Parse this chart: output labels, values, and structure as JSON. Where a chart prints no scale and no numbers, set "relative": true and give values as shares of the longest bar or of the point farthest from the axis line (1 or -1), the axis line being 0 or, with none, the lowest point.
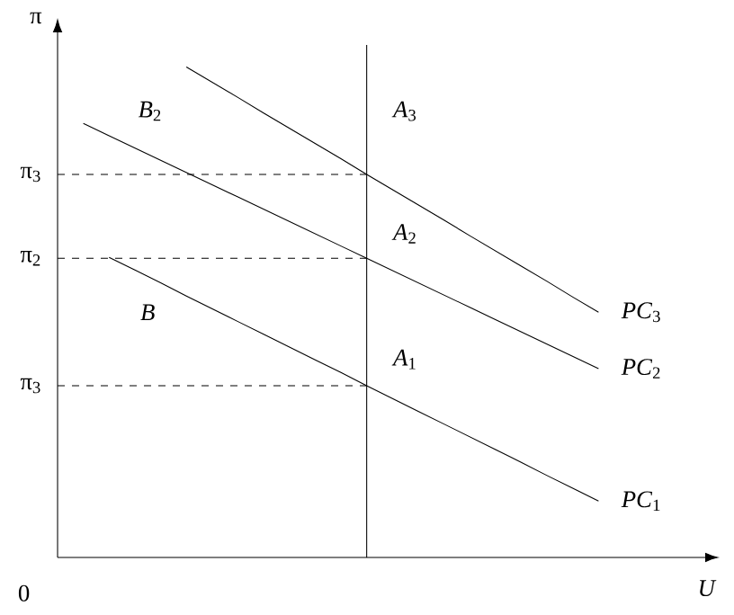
{
  "chart_data": {
    "type": "line",
    "relative": true,
    "xlabel": "U",
    "ylabel": "π",
    "marker": "none",
    "line_style": "solid",
    "categories": [
      null,
      null,
      null,
      null,
      null,
      null,
      null,
      null,
      null,
      null,
      null,
      null,
      null,
      null,
      null,
      null,
      null,
      null,
      null,
      null,
      null,
      null,
      null,
      null,
      null,
      null
    ],
    "series": [
      {
        "name": "*PC*$_{1}$",
        "color": "#000000",
        "values": [
          null,
          null,
          0.612,
          0.586,
          0.56,
          0.533,
          0.507,
          0.481,
          0.455,
          0.429,
          0.403,
          0.377,
          0.35,
          0.324,
          0.298,
          0.272,
          0.246,
          0.22,
          0.194,
          0.167,
          0.141,
          0.115,
          null,
          null,
          null,
          null
        ]
      },
      {
        "name": "*PC*$_{2}$",
        "color": "#000000",
        "values": [
          null,
          0.885,
          0.86,
          0.835,
          0.81,
          0.785,
          0.76,
          0.735,
          0.71,
          0.685,
          0.66,
          0.635,
          0.61,
          0.585,
          0.56,
          0.535,
          0.51,
          0.485,
          0.46,
          0.435,
          0.41,
          0.385,
          null,
          null,
          null,
          null
        ]
      },
      {
        "name": "*PC*$_{3}$",
        "color": "#000000",
        "values": [
          null,
          null,
          null,
          null,
          null,
          1.0,
          0.969,
          0.938,
          0.906,
          0.875,
          0.844,
          0.813,
          0.781,
          0.75,
          0.719,
          0.688,
          0.656,
          0.625,
          0.594,
          0.563,
          0.531,
          0.5,
          null,
          null,
          null,
          null
        ]
      },
      {
        "color": "#000000",
        "line_style": "dashed",
        "values": [
          0.781,
          0.781,
          0.781,
          0.781,
          0.781,
          0.781,
          0.781,
          0.781,
          0.781,
          0.781,
          0.781,
          0.781,
          0.781,
          null,
          null,
          null,
          null,
          null,
          null,
          null,
          null,
          null,
          null,
          null,
          null,
          null
        ]
      },
      {
        "color": "#000000",
        "line_style": "dashed",
        "values": [
          0.61,
          0.61,
          0.61,
          0.61,
          0.61,
          0.61,
          0.61,
          0.61,
          0.61,
          0.61,
          0.61,
          0.61,
          0.61,
          null,
          null,
          null,
          null,
          null,
          null,
          null,
          null,
          null,
          null,
          null,
          null,
          null
        ]
      },
      {
        "color": "#000000",
        "line_style": "dashed",
        "values": [
          0.35,
          0.35,
          0.35,
          0.35,
          0.35,
          0.35,
          0.35,
          0.35,
          0.35,
          0.35,
          0.35,
          0.35,
          0.35,
          null,
          null,
          null,
          null,
          null,
          null,
          null,
          null,
          null,
          null,
          null,
          null,
          null
        ]
      }
    ],
    "annotations": [
      "*A*$_{3}$",
      "*A*$_{2}$",
      "*A*$_{1}$",
      "*B*$_{2}$",
      "*B*",
      "π$_{3}$",
      "π$_{2}$",
      "π$_{3}$",
      "0"
    ]
  }
}
